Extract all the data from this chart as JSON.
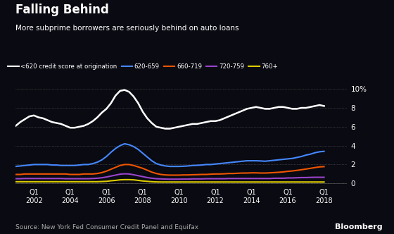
{
  "title": "Falling Behind",
  "subtitle": "More subprime borrowers are seriously behind on auto loans",
  "source": "Source: New York Fed Consumer Credit Panel and Equifax",
  "background_color": "#0a0a12",
  "text_color": "#ffffff",
  "legend_entries": [
    {
      "label": "<620 credit score at origination",
      "color": "#ffffff"
    },
    {
      "label": "620-659",
      "color": "#4488ff"
    },
    {
      "label": "660-719",
      "color": "#ee5500"
    },
    {
      "label": "720-759",
      "color": "#9944cc"
    },
    {
      "label": "760+",
      "color": "#ddcc00"
    }
  ],
  "yticks": [
    0,
    2,
    4,
    6,
    8,
    10
  ],
  "ylim": [
    -0.4,
    11.0
  ],
  "xlim": [
    2001.0,
    2019.25
  ],
  "xtick_years": [
    2002,
    2004,
    2006,
    2008,
    2010,
    2012,
    2014,
    2016,
    2018
  ],
  "series_lt620": [
    6.1,
    6.5,
    6.8,
    7.1,
    7.2,
    7.0,
    6.9,
    6.7,
    6.5,
    6.4,
    6.3,
    6.1,
    5.9,
    5.9,
    6.0,
    6.1,
    6.3,
    6.6,
    7.0,
    7.5,
    7.9,
    8.5,
    9.3,
    9.8,
    9.9,
    9.7,
    9.2,
    8.5,
    7.6,
    6.9,
    6.4,
    6.0,
    5.9,
    5.8,
    5.8,
    5.9,
    6.0,
    6.1,
    6.2,
    6.3,
    6.3,
    6.4,
    6.5,
    6.6,
    6.6,
    6.7,
    6.9,
    7.1,
    7.3,
    7.5,
    7.7,
    7.9,
    8.0,
    8.1,
    8.0,
    7.9,
    7.9,
    8.0,
    8.1,
    8.1,
    8.0,
    7.9,
    7.9,
    8.0,
    8.0,
    8.1,
    8.2,
    8.3,
    8.2
  ],
  "series_620_659": [
    1.8,
    1.85,
    1.9,
    1.95,
    2.0,
    2.0,
    2.0,
    2.0,
    1.95,
    1.95,
    1.9,
    1.9,
    1.9,
    1.9,
    1.95,
    2.0,
    2.0,
    2.1,
    2.25,
    2.5,
    2.85,
    3.3,
    3.7,
    4.0,
    4.2,
    4.1,
    3.9,
    3.6,
    3.2,
    2.8,
    2.4,
    2.1,
    1.95,
    1.85,
    1.8,
    1.8,
    1.8,
    1.82,
    1.85,
    1.9,
    1.92,
    1.95,
    2.0,
    2.0,
    2.05,
    2.1,
    2.15,
    2.2,
    2.25,
    2.3,
    2.35,
    2.4,
    2.4,
    2.4,
    2.38,
    2.35,
    2.4,
    2.45,
    2.5,
    2.55,
    2.6,
    2.65,
    2.75,
    2.85,
    3.0,
    3.1,
    3.25,
    3.35,
    3.4
  ],
  "series_660_719": [
    0.95,
    0.95,
    1.0,
    1.0,
    1.0,
    1.0,
    1.0,
    1.0,
    1.0,
    1.0,
    1.0,
    1.0,
    0.95,
    0.95,
    0.95,
    1.0,
    1.0,
    1.0,
    1.05,
    1.15,
    1.3,
    1.5,
    1.7,
    1.9,
    2.0,
    2.0,
    1.9,
    1.75,
    1.6,
    1.4,
    1.2,
    1.05,
    0.95,
    0.9,
    0.88,
    0.88,
    0.88,
    0.9,
    0.9,
    0.92,
    0.93,
    0.95,
    0.95,
    0.98,
    1.0,
    1.0,
    1.02,
    1.05,
    1.05,
    1.08,
    1.1,
    1.1,
    1.12,
    1.12,
    1.1,
    1.1,
    1.12,
    1.15,
    1.18,
    1.22,
    1.28,
    1.32,
    1.38,
    1.45,
    1.52,
    1.6,
    1.68,
    1.75,
    1.78
  ],
  "series_720_759": [
    0.5,
    0.5,
    0.52,
    0.52,
    0.52,
    0.52,
    0.52,
    0.52,
    0.52,
    0.52,
    0.52,
    0.5,
    0.5,
    0.5,
    0.5,
    0.5,
    0.5,
    0.52,
    0.55,
    0.6,
    0.68,
    0.78,
    0.88,
    0.98,
    1.02,
    1.0,
    0.92,
    0.82,
    0.72,
    0.62,
    0.55,
    0.5,
    0.48,
    0.46,
    0.45,
    0.45,
    0.45,
    0.46,
    0.46,
    0.48,
    0.48,
    0.48,
    0.5,
    0.5,
    0.5,
    0.5,
    0.5,
    0.52,
    0.52,
    0.52,
    0.52,
    0.52,
    0.52,
    0.52,
    0.52,
    0.52,
    0.52,
    0.55,
    0.55,
    0.55,
    0.58,
    0.58,
    0.6,
    0.62,
    0.62,
    0.64,
    0.65,
    0.65,
    0.65
  ],
  "series_760plus": [
    0.18,
    0.18,
    0.18,
    0.18,
    0.18,
    0.18,
    0.18,
    0.18,
    0.18,
    0.18,
    0.18,
    0.18,
    0.18,
    0.18,
    0.18,
    0.18,
    0.18,
    0.18,
    0.18,
    0.2,
    0.22,
    0.28,
    0.32,
    0.38,
    0.4,
    0.4,
    0.38,
    0.32,
    0.26,
    0.22,
    0.18,
    0.16,
    0.15,
    0.15,
    0.15,
    0.15,
    0.15,
    0.15,
    0.15,
    0.15,
    0.15,
    0.15,
    0.15,
    0.15,
    0.15,
    0.15,
    0.15,
    0.15,
    0.15,
    0.15,
    0.15,
    0.15,
    0.15,
    0.15,
    0.15,
    0.15,
    0.15,
    0.15,
    0.15,
    0.15,
    0.15,
    0.15,
    0.15,
    0.15,
    0.15,
    0.15,
    0.15,
    0.15,
    0.15
  ]
}
